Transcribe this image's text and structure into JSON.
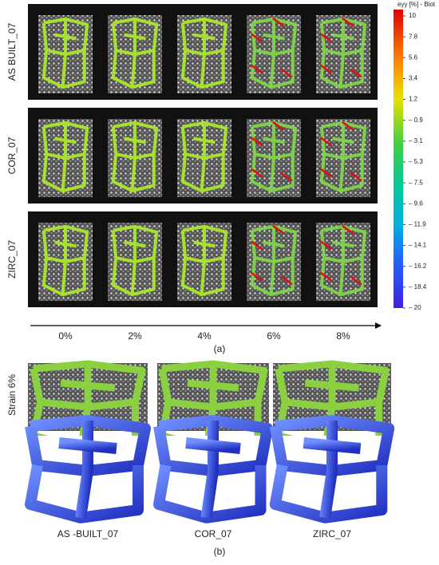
{
  "panel_a": {
    "rows": [
      "AS BUILT_07",
      "COR_07",
      "ZIRC_07"
    ],
    "strains": [
      "0%",
      "2%",
      "4%",
      "6%",
      "8%"
    ],
    "colorbar": {
      "title": "eyy [%] - Biot",
      "ticks": [
        "10",
        "7.8",
        "5.6",
        "3.4",
        "1.2",
        "– 0.9",
        "– 3.1",
        "– 5.3",
        "– 7.5",
        "– 9.6",
        "– 11.9",
        "– 14.1",
        "– 16.2",
        "– 18.4",
        "– 20"
      ]
    },
    "label": "(a)"
  },
  "panel_b": {
    "row_label": "Strain 6%",
    "columns": [
      "AS -BUILT_07",
      "COR_07",
      "ZIRC_07"
    ],
    "label": "(b)"
  }
}
